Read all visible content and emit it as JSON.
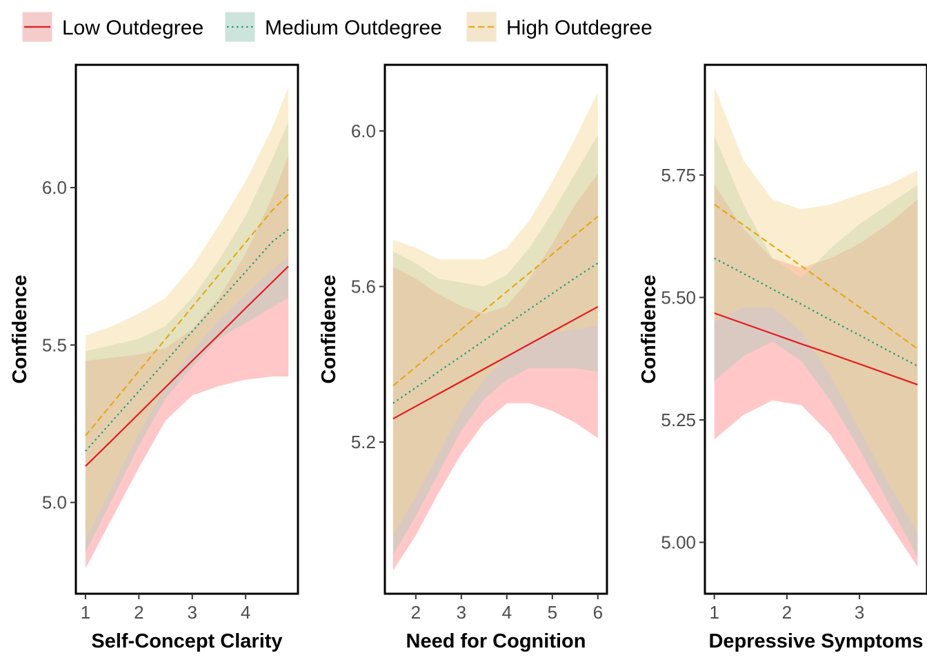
{
  "legend": {
    "items": [
      {
        "label": "Low Outdegree",
        "color": "#E41A1C",
        "fill": "#F4CCCC",
        "dash": "solid"
      },
      {
        "label": "Medium Outdegree",
        "color": "#1B9E77",
        "fill": "#CDE4DC",
        "dash": "dotted"
      },
      {
        "label": "High Outdegree",
        "color": "#E6A817",
        "fill": "#F3E6CC",
        "dash": "dashed"
      }
    ],
    "position": "top"
  },
  "chart_data": [
    {
      "type": "line",
      "xlabel": "Self-Concept Clarity",
      "ylabel": "Confidence",
      "xlim": [
        0.82,
        4.98
      ],
      "ylim": [
        4.71,
        6.39
      ],
      "xticks": [
        1,
        2,
        3,
        4
      ],
      "yticks": [
        5.0,
        5.5,
        6.0
      ],
      "ytick_labels": [
        "5.0",
        "5.5",
        "6.0"
      ],
      "grid": false,
      "series": [
        {
          "name": "Low Outdegree",
          "x": [
            1,
            1.5,
            2,
            2.5,
            3,
            3.5,
            4,
            4.5,
            4.8
          ],
          "y": [
            5.115,
            5.198,
            5.282,
            5.366,
            5.45,
            5.533,
            5.617,
            5.7,
            5.75
          ],
          "lower": [
            4.79,
            4.95,
            5.11,
            5.26,
            5.34,
            5.37,
            5.39,
            5.4,
            5.4
          ],
          "upper": [
            5.45,
            5.46,
            5.47,
            5.49,
            5.55,
            5.65,
            5.79,
            5.97,
            6.1
          ]
        },
        {
          "name": "Medium Outdegree",
          "x": [
            1,
            1.5,
            2,
            2.5,
            3,
            3.5,
            4,
            4.5,
            4.8
          ],
          "y": [
            5.163,
            5.258,
            5.353,
            5.448,
            5.543,
            5.638,
            5.733,
            5.828,
            5.867
          ],
          "lower": [
            4.84,
            5.01,
            5.18,
            5.33,
            5.43,
            5.52,
            5.57,
            5.62,
            5.65
          ],
          "upper": [
            5.48,
            5.5,
            5.52,
            5.56,
            5.65,
            5.77,
            5.91,
            6.09,
            6.21
          ]
        },
        {
          "name": "High Outdegree",
          "x": [
            1,
            1.5,
            2,
            2.5,
            3,
            3.5,
            4,
            4.5,
            4.8
          ],
          "y": [
            5.212,
            5.314,
            5.417,
            5.519,
            5.621,
            5.723,
            5.826,
            5.928,
            5.978
          ],
          "lower": [
            4.88,
            5.05,
            5.22,
            5.37,
            5.48,
            5.58,
            5.66,
            5.74,
            5.78
          ],
          "upper": [
            5.53,
            5.56,
            5.6,
            5.65,
            5.75,
            5.88,
            6.02,
            6.19,
            6.32
          ]
        }
      ]
    },
    {
      "type": "line",
      "xlabel": "Need for Cognition",
      "ylabel": "Confidence",
      "xlim": [
        1.32,
        6.2
      ],
      "ylim": [
        4.81,
        6.17
      ],
      "xticks": [
        2,
        3,
        4,
        5,
        6
      ],
      "yticks": [
        5.2,
        5.6,
        6.0
      ],
      "ytick_labels": [
        "5.2",
        "5.6",
        "6.0"
      ],
      "grid": false,
      "series": [
        {
          "name": "Low Outdegree",
          "x": [
            1.5,
            2,
            2.5,
            3,
            3.5,
            4,
            4.5,
            5,
            5.5,
            6
          ],
          "y": [
            5.26,
            5.292,
            5.324,
            5.356,
            5.388,
            5.42,
            5.452,
            5.484,
            5.516,
            5.548
          ],
          "lower": [
            4.87,
            4.96,
            5.07,
            5.17,
            5.25,
            5.3,
            5.3,
            5.28,
            5.25,
            5.21
          ],
          "upper": [
            5.65,
            5.62,
            5.58,
            5.55,
            5.53,
            5.55,
            5.62,
            5.71,
            5.81,
            5.89
          ]
        },
        {
          "name": "Medium Outdegree",
          "x": [
            1.5,
            2,
            2.5,
            3,
            3.5,
            4,
            4.5,
            5,
            5.5,
            6
          ],
          "y": [
            5.3,
            5.34,
            5.381,
            5.421,
            5.461,
            5.502,
            5.542,
            5.582,
            5.622,
            5.66
          ],
          "lower": [
            4.91,
            5.01,
            5.12,
            5.23,
            5.31,
            5.36,
            5.39,
            5.39,
            5.39,
            5.38
          ],
          "upper": [
            5.69,
            5.66,
            5.62,
            5.61,
            5.6,
            5.63,
            5.7,
            5.79,
            5.89,
            5.99
          ]
        },
        {
          "name": "High Outdegree",
          "x": [
            1.5,
            2,
            2.5,
            3,
            3.5,
            4,
            4.5,
            5,
            5.5,
            6
          ],
          "y": [
            5.345,
            5.393,
            5.442,
            5.49,
            5.538,
            5.587,
            5.635,
            5.683,
            5.732,
            5.78
          ],
          "lower": [
            4.96,
            5.06,
            5.17,
            5.28,
            5.36,
            5.42,
            5.46,
            5.48,
            5.49,
            5.5
          ],
          "upper": [
            5.72,
            5.7,
            5.67,
            5.67,
            5.67,
            5.7,
            5.77,
            5.87,
            5.98,
            6.1
          ]
        }
      ]
    },
    {
      "type": "line",
      "xlabel": "Depressive Symptoms",
      "ylabel": "Confidence",
      "xlim": [
        0.87,
        3.93
      ],
      "ylim": [
        4.895,
        5.975
      ],
      "xticks": [
        1,
        2,
        3
      ],
      "yticks": [
        5.0,
        5.25,
        5.5,
        5.75
      ],
      "ytick_labels": [
        "5.00",
        "5.25",
        "5.50",
        "5.75"
      ],
      "grid": false,
      "series": [
        {
          "name": "Low Outdegree",
          "x": [
            1,
            1.4,
            1.8,
            2.2,
            2.6,
            3,
            3.4,
            3.8
          ],
          "y": [
            5.468,
            5.447,
            5.426,
            5.405,
            5.385,
            5.364,
            5.343,
            5.322
          ],
          "lower": [
            5.21,
            5.26,
            5.29,
            5.28,
            5.22,
            5.13,
            5.04,
            4.95
          ],
          "upper": [
            5.73,
            5.64,
            5.58,
            5.56,
            5.58,
            5.61,
            5.65,
            5.7
          ]
        },
        {
          "name": "Medium Outdegree",
          "x": [
            1,
            1.4,
            1.8,
            2.2,
            2.6,
            3,
            3.4,
            3.8
          ],
          "y": [
            5.58,
            5.549,
            5.517,
            5.486,
            5.454,
            5.423,
            5.391,
            5.36
          ],
          "lower": [
            5.33,
            5.38,
            5.41,
            5.37,
            5.29,
            5.19,
            5.08,
            4.97
          ],
          "upper": [
            5.83,
            5.69,
            5.58,
            5.54,
            5.6,
            5.65,
            5.69,
            5.73
          ]
        },
        {
          "name": "High Outdegree",
          "x": [
            1,
            1.4,
            1.8,
            2.2,
            2.6,
            3,
            3.4,
            3.8
          ],
          "y": [
            5.69,
            5.648,
            5.606,
            5.564,
            5.522,
            5.48,
            5.438,
            5.395
          ],
          "lower": [
            5.45,
            5.48,
            5.48,
            5.43,
            5.34,
            5.23,
            5.12,
            5.02
          ],
          "upper": [
            5.93,
            5.78,
            5.7,
            5.68,
            5.69,
            5.71,
            5.73,
            5.76
          ]
        }
      ]
    }
  ]
}
